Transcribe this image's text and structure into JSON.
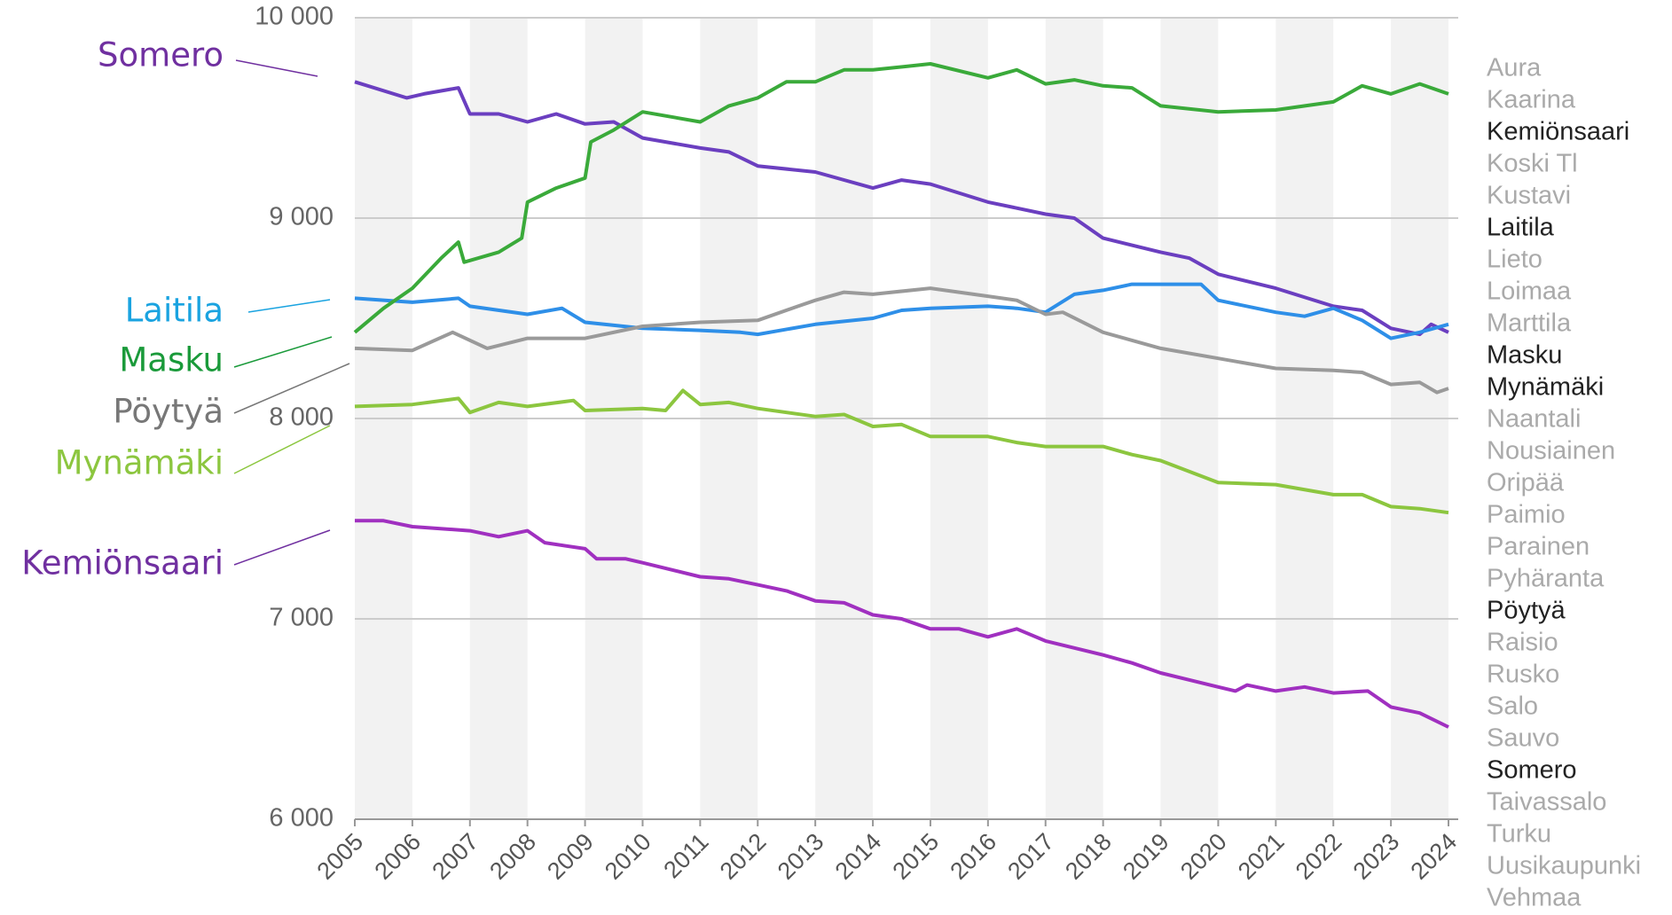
{
  "chart_data": {
    "type": "line",
    "xlim": [
      2005,
      2024
    ],
    "xticks": [
      2005,
      2006,
      2007,
      2008,
      2009,
      2010,
      2011,
      2012,
      2013,
      2014,
      2015,
      2016,
      2017,
      2018,
      2019,
      2020,
      2021,
      2022,
      2023,
      2024
    ],
    "ylim": [
      6000,
      10000
    ],
    "yticks": [
      {
        "value": 6000,
        "label": "6 000"
      },
      {
        "value": 7000,
        "label": "7 000"
      },
      {
        "value": 8000,
        "label": "8 000"
      },
      {
        "value": 9000,
        "label": "9 000"
      },
      {
        "value": 10000,
        "label": "10 000"
      }
    ],
    "grid": true,
    "series": [
      {
        "name": "Somero",
        "color": "#6b3fc0",
        "label_color": "#7030a0",
        "x": [
          2005,
          2005.9,
          2006.2,
          2006.8,
          2007,
          2007.5,
          2008,
          2008.5,
          2009,
          2009.5,
          2010,
          2011,
          2011.5,
          2012,
          2013,
          2014,
          2014.5,
          2015,
          2016,
          2016.5,
          2017,
          2017.5,
          2018,
          2019,
          2019.5,
          2020,
          2021,
          2022,
          2022.5,
          2023,
          2023.5,
          2023.7,
          2024
        ],
        "values": [
          9680,
          9600,
          9620,
          9650,
          9520,
          9520,
          9480,
          9520,
          9470,
          9480,
          9400,
          9350,
          9330,
          9260,
          9230,
          9150,
          9190,
          9170,
          9080,
          9050,
          9020,
          9000,
          8900,
          8830,
          8800,
          8720,
          8650,
          8560,
          8540,
          8450,
          8420,
          8470,
          8430
        ]
      },
      {
        "name": "Laitila",
        "color": "#2e8fe8",
        "label_color": "#1aa3e0",
        "x": [
          2005,
          2006,
          2006.8,
          2007,
          2008,
          2008.6,
          2009,
          2010,
          2011,
          2011.7,
          2012,
          2013,
          2014,
          2014.5,
          2015,
          2016,
          2016.5,
          2017,
          2017.5,
          2018,
          2018.5,
          2019,
          2019.7,
          2020,
          2021,
          2021.5,
          2022,
          2022.5,
          2023,
          2023.5,
          2024
        ],
        "values": [
          8600,
          8580,
          8600,
          8560,
          8520,
          8550,
          8480,
          8450,
          8440,
          8430,
          8420,
          8470,
          8500,
          8540,
          8550,
          8560,
          8550,
          8530,
          8620,
          8640,
          8670,
          8670,
          8670,
          8590,
          8530,
          8510,
          8550,
          8490,
          8400,
          8430,
          8470
        ]
      },
      {
        "name": "Masku",
        "color": "#3aaa3a",
        "label_color": "#1a9a3a",
        "x": [
          2005,
          2005.5,
          2006,
          2006.5,
          2006.8,
          2006.9,
          2007.5,
          2007.9,
          2008,
          2008.5,
          2009,
          2009.1,
          2009.5,
          2010,
          2011,
          2011.5,
          2012,
          2012.5,
          2013,
          2013.5,
          2014,
          2015,
          2016,
          2016.5,
          2017,
          2017.5,
          2018,
          2018.5,
          2019,
          2020,
          2021,
          2022,
          2022.5,
          2023,
          2023.5,
          2024
        ],
        "values": [
          8430,
          8550,
          8650,
          8800,
          8880,
          8780,
          8830,
          8900,
          9080,
          9150,
          9200,
          9380,
          9440,
          9530,
          9480,
          9560,
          9600,
          9680,
          9680,
          9740,
          9740,
          9770,
          9700,
          9740,
          9670,
          9690,
          9660,
          9650,
          9560,
          9530,
          9540,
          9580,
          9660,
          9620,
          9670,
          9620
        ]
      },
      {
        "name": "Pöytyä",
        "color": "#9a9a9a",
        "label_color": "#777777",
        "x": [
          2005,
          2006,
          2006.7,
          2007.3,
          2008,
          2009,
          2010,
          2011,
          2012,
          2012.7,
          2013,
          2013.5,
          2014,
          2015,
          2016,
          2016.5,
          2017,
          2017.3,
          2018,
          2019,
          2020,
          2021,
          2022,
          2022.5,
          2023,
          2023.5,
          2023.8,
          2024
        ],
        "values": [
          8350,
          8340,
          8430,
          8350,
          8400,
          8400,
          8460,
          8480,
          8490,
          8560,
          8590,
          8630,
          8620,
          8650,
          8610,
          8590,
          8520,
          8530,
          8430,
          8350,
          8300,
          8250,
          8240,
          8230,
          8170,
          8180,
          8130,
          8150
        ]
      },
      {
        "name": "Mynämäki",
        "color": "#8cc63f",
        "label_color": "#8cc63f",
        "x": [
          2005,
          2006,
          2006.8,
          2007,
          2007.5,
          2008,
          2008.8,
          2009,
          2010,
          2010.4,
          2010.7,
          2011,
          2011.5,
          2012,
          2013,
          2013.5,
          2014,
          2014.5,
          2015,
          2016,
          2016.5,
          2017,
          2018,
          2018.5,
          2019,
          2020,
          2021,
          2022,
          2022.5,
          2023,
          2023.5,
          2024
        ],
        "values": [
          8060,
          8070,
          8100,
          8030,
          8080,
          8060,
          8090,
          8040,
          8050,
          8040,
          8140,
          8070,
          8080,
          8050,
          8010,
          8020,
          7960,
          7970,
          7910,
          7910,
          7880,
          7860,
          7860,
          7820,
          7790,
          7680,
          7670,
          7620,
          7620,
          7560,
          7550,
          7530
        ]
      },
      {
        "name": "Kemiönsaari",
        "color": "#a030c0",
        "label_color": "#7030a0",
        "x": [
          2005,
          2005.5,
          2006,
          2007,
          2007.5,
          2008,
          2008.3,
          2009,
          2009.2,
          2009.7,
          2010,
          2011,
          2011.5,
          2012,
          2012.5,
          2013,
          2013.5,
          2014,
          2014.5,
          2015,
          2015.5,
          2016,
          2016.5,
          2017,
          2018,
          2018.5,
          2019,
          2020,
          2020.3,
          2020.5,
          2021,
          2021.5,
          2022,
          2022.6,
          2023,
          2023.5,
          2024
        ],
        "values": [
          7490,
          7490,
          7460,
          7440,
          7410,
          7440,
          7380,
          7350,
          7300,
          7300,
          7280,
          7210,
          7200,
          7170,
          7140,
          7090,
          7080,
          7020,
          7000,
          6950,
          6950,
          6910,
          6950,
          6890,
          6820,
          6780,
          6730,
          6660,
          6640,
          6670,
          6640,
          6660,
          6630,
          6640,
          6560,
          6530,
          6460
        ]
      }
    ],
    "municipalities": [
      {
        "name": "Aura",
        "selected": false
      },
      {
        "name": "Kaarina",
        "selected": false
      },
      {
        "name": "Kemiönsaari",
        "selected": true
      },
      {
        "name": "Koski Tl",
        "selected": false
      },
      {
        "name": "Kustavi",
        "selected": false
      },
      {
        "name": "Laitila",
        "selected": true
      },
      {
        "name": "Lieto",
        "selected": false
      },
      {
        "name": "Loimaa",
        "selected": false
      },
      {
        "name": "Marttila",
        "selected": false
      },
      {
        "name": "Masku",
        "selected": true
      },
      {
        "name": "Mynämäki",
        "selected": true
      },
      {
        "name": "Naantali",
        "selected": false
      },
      {
        "name": "Nousiainen",
        "selected": false
      },
      {
        "name": "Oripää",
        "selected": false
      },
      {
        "name": "Paimio",
        "selected": false
      },
      {
        "name": "Parainen",
        "selected": false
      },
      {
        "name": "Pyhäranta",
        "selected": false
      },
      {
        "name": "Pöytyä",
        "selected": true
      },
      {
        "name": "Raisio",
        "selected": false
      },
      {
        "name": "Rusko",
        "selected": false
      },
      {
        "name": "Salo",
        "selected": false
      },
      {
        "name": "Sauvo",
        "selected": false
      },
      {
        "name": "Somero",
        "selected": true
      },
      {
        "name": "Taivassalo",
        "selected": false
      },
      {
        "name": "Turku",
        "selected": false
      },
      {
        "name": "Uusikaupunki",
        "selected": false
      },
      {
        "name": "Vehmaa",
        "selected": false
      }
    ]
  }
}
